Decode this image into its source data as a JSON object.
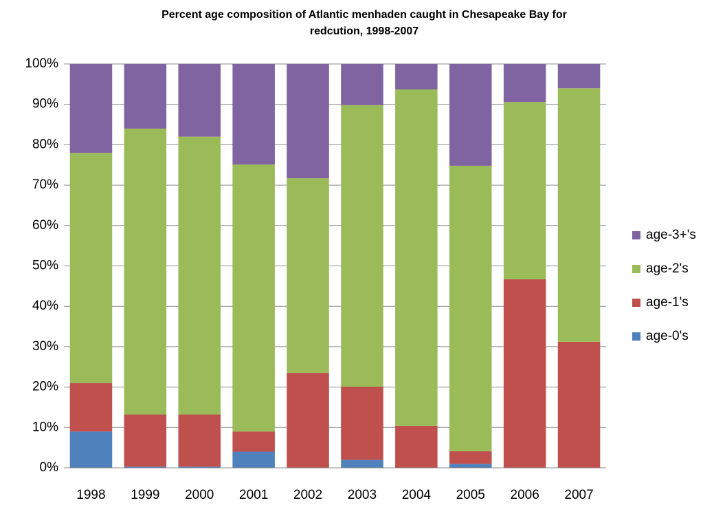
{
  "chart_data": {
    "type": "stacked_bar",
    "title": "Percent age composition of Atlantic menhaden caught in Chesapeake Bay for redcution, 1998-2007",
    "categories": [
      "1998",
      "1999",
      "2000",
      "2001",
      "2002",
      "2003",
      "2004",
      "2005",
      "2006",
      "2007"
    ],
    "series": [
      {
        "name": "age-0's",
        "color": "#4f81bd",
        "values": [
          9.0,
          0.3,
          0.3,
          4.0,
          0,
          2.0,
          0,
          1.0,
          0,
          0
        ]
      },
      {
        "name": "age-1's",
        "color": "#c0504d",
        "values": [
          12.0,
          12.9,
          12.9,
          5.0,
          23.5,
          18.1,
          10.4,
          3.1,
          46.7,
          31.2
        ]
      },
      {
        "name": "age-2's",
        "color": "#9bbb59",
        "values": [
          57.0,
          70.8,
          68.8,
          66.1,
          48.2,
          69.7,
          83.3,
          70.7,
          43.9,
          62.8
        ]
      },
      {
        "name": "age-3+'s",
        "color": "#8064a2",
        "values": [
          22.0,
          16.0,
          18.0,
          24.9,
          28.3,
          10.2,
          6.3,
          25.2,
          9.4,
          6.0
        ]
      }
    ],
    "ylim": [
      0,
      100
    ],
    "yticks": [
      {
        "value": 0,
        "label": "0%"
      },
      {
        "value": 10,
        "label": "10%"
      },
      {
        "value": 20,
        "label": "20%"
      },
      {
        "value": 30,
        "label": "30%"
      },
      {
        "value": 40,
        "label": "40%"
      },
      {
        "value": 50,
        "label": "50%"
      },
      {
        "value": 60,
        "label": "60%"
      },
      {
        "value": 70,
        "label": "70%"
      },
      {
        "value": 80,
        "label": "80%"
      },
      {
        "value": 90,
        "label": "90%"
      },
      {
        "value": 100,
        "label": "100%"
      }
    ],
    "grid": true,
    "legend": "right"
  }
}
